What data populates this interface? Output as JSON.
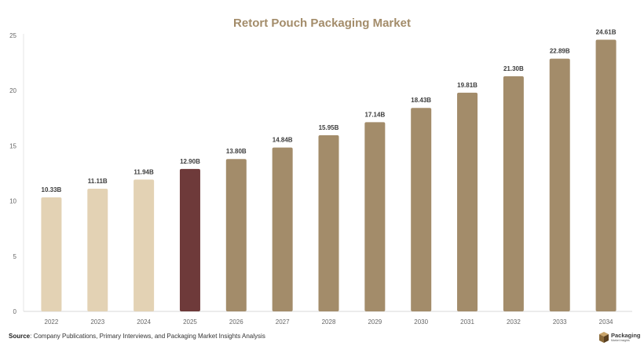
{
  "chart_data": {
    "type": "bar",
    "title": "Retort Pouch Packaging Market",
    "xlabel": "",
    "ylabel": "",
    "categories": [
      "2022",
      "2023",
      "2024",
      "2025",
      "2026",
      "2027",
      "2028",
      "2029",
      "2030",
      "2031",
      "2032",
      "2033",
      "2034"
    ],
    "values": [
      10.33,
      11.11,
      11.94,
      12.9,
      13.8,
      14.84,
      15.95,
      17.14,
      18.43,
      19.81,
      21.3,
      22.89,
      24.61
    ],
    "data_labels": [
      "10.33B",
      "11.11B",
      "11.94B",
      "12.90B",
      "13.80B",
      "14.84B",
      "15.95B",
      "17.14B",
      "18.43B",
      "19.81B",
      "21.30B",
      "22.89B",
      "24.61B"
    ],
    "bar_colors": [
      "#e3d2b4",
      "#e3d2b4",
      "#e3d2b4",
      "#6e3a3a",
      "#a38c6a",
      "#a38c6a",
      "#a38c6a",
      "#a38c6a",
      "#a38c6a",
      "#a38c6a",
      "#a38c6a",
      "#a38c6a",
      "#a38c6a"
    ],
    "ylim": [
      0,
      25
    ],
    "y_ticks": [
      0,
      5,
      10,
      15,
      20,
      25
    ],
    "grid": false
  },
  "colors": {
    "title": "#a38c6a",
    "historical": "#e3d2b4",
    "base_year": "#6e3a3a",
    "forecast": "#a38c6a",
    "axis_text": "#666666"
  },
  "footer": {
    "source_label": "Source",
    "source_text": ": Company Publications, Primary Interviews, and Packaging Market Insights Analysis"
  },
  "brand": {
    "logo_icon": "box-icon",
    "name": "Packaging",
    "tagline": "Market Insights"
  }
}
